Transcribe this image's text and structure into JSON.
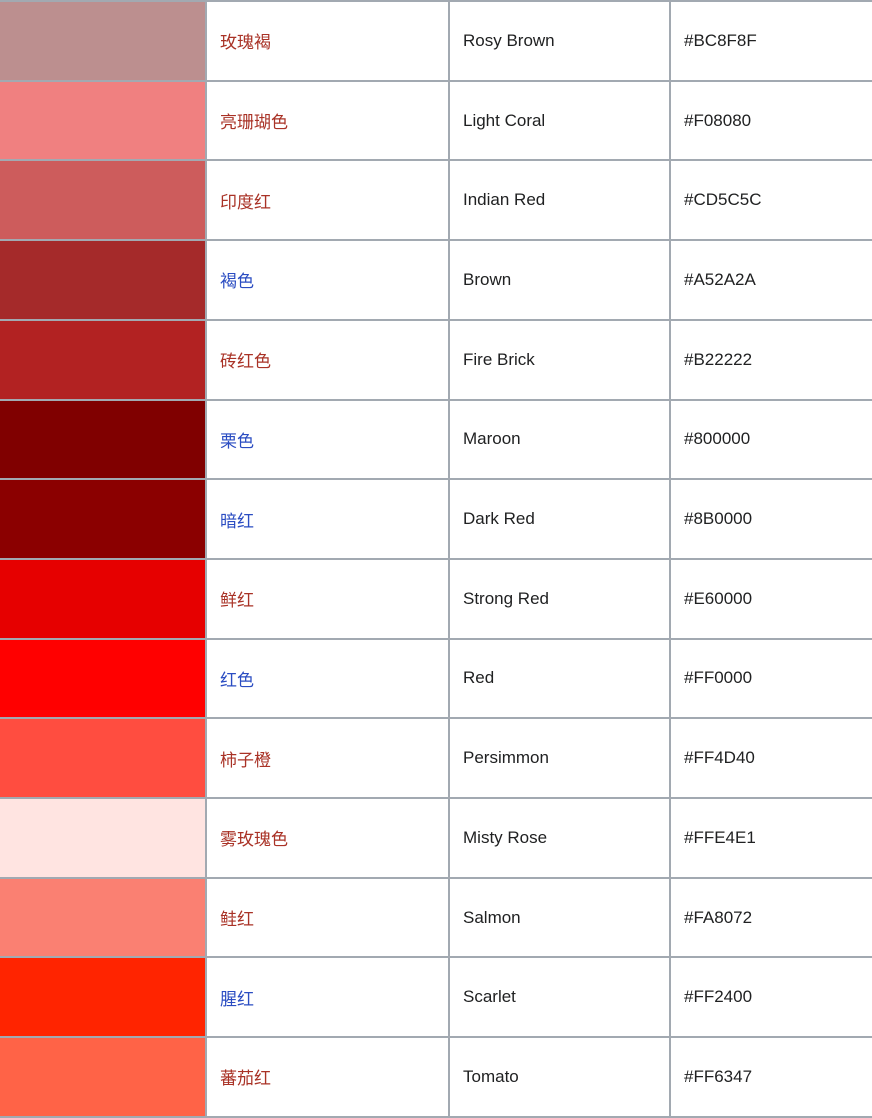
{
  "table": {
    "semantic": "color-reference-table",
    "columns": [
      "color-swatch",
      "chinese-name",
      "english-name",
      "hex-code"
    ],
    "rows": [
      {
        "chinese": "玫瑰褐",
        "english": "Rosy Brown",
        "hex": "#BC8F8F",
        "link_type": "red"
      },
      {
        "chinese": "亮珊瑚色",
        "english": "Light Coral",
        "hex": "#F08080",
        "link_type": "red"
      },
      {
        "chinese": "印度红",
        "english": "Indian Red",
        "hex": "#CD5C5C",
        "link_type": "red"
      },
      {
        "chinese": "褐色",
        "english": "Brown",
        "hex": "#A52A2A",
        "link_type": "blue"
      },
      {
        "chinese": "砖红色",
        "english": "Fire Brick",
        "hex": "#B22222",
        "link_type": "red"
      },
      {
        "chinese": "栗色",
        "english": "Maroon",
        "hex": "#800000",
        "link_type": "blue"
      },
      {
        "chinese": "暗红",
        "english": "Dark Red",
        "hex": "#8B0000",
        "link_type": "blue"
      },
      {
        "chinese": "鲜红",
        "english": "Strong Red",
        "hex": "#E60000",
        "link_type": "red"
      },
      {
        "chinese": "红色",
        "english": "Red",
        "hex": "#FF0000",
        "link_type": "blue"
      },
      {
        "chinese": "柿子橙",
        "english": "Persimmon",
        "hex": "#FF4D40",
        "link_type": "red"
      },
      {
        "chinese": "雾玫瑰色",
        "english": "Misty Rose",
        "hex": "#FFE4E1",
        "link_type": "red"
      },
      {
        "chinese": "鲑红",
        "english": "Salmon",
        "hex": "#FA8072",
        "link_type": "red"
      },
      {
        "chinese": "腥红",
        "english": "Scarlet",
        "hex": "#FF2400",
        "link_type": "blue"
      },
      {
        "chinese": "蕃茄红",
        "english": "Tomato",
        "hex": "#FF6347",
        "link_type": "red"
      }
    ]
  },
  "colors": {
    "border": "#a2a9b1",
    "red_link": "#a93226",
    "blue_link": "#2a4cc2",
    "body_text": "#202122",
    "cell_background": "#ffffff"
  }
}
